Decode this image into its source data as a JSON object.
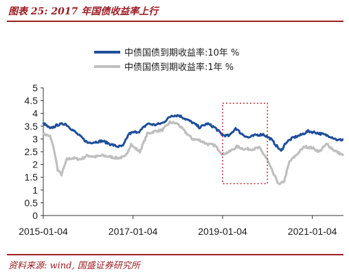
{
  "figure": {
    "title": "图表 25:  2017 年国债收益率上行",
    "source": "资料来源:  wind,  国盛证券研究所"
  },
  "colors": {
    "series_10y": "#1f4e9b",
    "series_1y": "#bfbfbf",
    "highlight_box": "#c0272d",
    "accent": "#9b1c22"
  },
  "chart_data": {
    "type": "line",
    "ylim": [
      0,
      5
    ],
    "yticks": [
      "0",
      "0.5",
      "1",
      "1.5",
      "2",
      "2.5",
      "3",
      "3.5",
      "4",
      "4.5",
      "5"
    ],
    "xlim": [
      "2015-01-04",
      "2021-09-15"
    ],
    "xticks": [
      "2015-01-04",
      "2017-01-04",
      "2019-01-04",
      "2021-01-04"
    ],
    "legend_position": "top-center",
    "highlight_region": {
      "x": [
        "2019-01-04",
        "2020-01-04"
      ],
      "y": [
        1.25,
        4.4
      ]
    },
    "series": [
      {
        "name": "中债国债到期收益率:10年 %",
        "x": [
          "2015-01-04",
          "2015-03-01",
          "2015-05-01",
          "2015-07-01",
          "2015-09-01",
          "2015-11-01",
          "2016-01-01",
          "2016-03-01",
          "2016-05-01",
          "2016-07-01",
          "2016-09-01",
          "2016-10-15",
          "2016-12-01",
          "2017-01-04",
          "2017-03-01",
          "2017-05-01",
          "2017-07-01",
          "2017-09-01",
          "2017-11-15",
          "2018-01-15",
          "2018-03-01",
          "2018-05-01",
          "2018-07-01",
          "2018-09-01",
          "2018-11-01",
          "2019-01-04",
          "2019-03-01",
          "2019-04-20",
          "2019-06-01",
          "2019-08-01",
          "2019-10-01",
          "2019-12-01",
          "2020-02-01",
          "2020-03-15",
          "2020-04-25",
          "2020-06-01",
          "2020-08-01",
          "2020-10-01",
          "2020-12-01",
          "2021-02-01",
          "2021-04-01",
          "2021-06-01",
          "2021-08-01",
          "2021-09-15"
        ],
        "values": [
          3.62,
          3.4,
          3.55,
          3.6,
          3.35,
          3.1,
          2.85,
          2.88,
          2.92,
          2.8,
          2.7,
          2.72,
          3.2,
          3.25,
          3.3,
          3.6,
          3.55,
          3.62,
          3.92,
          3.92,
          3.8,
          3.65,
          3.45,
          3.6,
          3.45,
          3.15,
          3.12,
          3.43,
          3.22,
          3.05,
          3.15,
          3.18,
          3.0,
          2.75,
          2.52,
          2.85,
          3.05,
          3.15,
          3.3,
          3.25,
          3.18,
          3.1,
          2.95,
          2.98
        ]
      },
      {
        "name": "中债国债到期收益率:1年 %",
        "x": [
          "2015-01-04",
          "2015-03-01",
          "2015-04-01",
          "2015-05-01",
          "2015-06-01",
          "2015-07-15",
          "2015-09-01",
          "2015-11-01",
          "2016-01-01",
          "2016-03-01",
          "2016-05-01",
          "2016-07-01",
          "2016-09-01",
          "2016-11-01",
          "2016-12-20",
          "2017-01-04",
          "2017-03-01",
          "2017-05-01",
          "2017-07-01",
          "2017-09-01",
          "2017-11-01",
          "2018-01-01",
          "2018-03-01",
          "2018-05-01",
          "2018-07-01",
          "2018-09-01",
          "2018-11-01",
          "2019-01-04",
          "2019-03-01",
          "2019-05-01",
          "2019-07-01",
          "2019-09-01",
          "2019-11-01",
          "2020-01-01",
          "2020-02-20",
          "2020-04-10",
          "2020-05-20",
          "2020-07-01",
          "2020-09-01",
          "2020-11-01",
          "2021-01-04",
          "2021-03-01",
          "2021-05-01",
          "2021-07-01",
          "2021-09-15"
        ],
        "values": [
          3.2,
          3.1,
          2.6,
          1.8,
          1.6,
          2.2,
          2.25,
          2.2,
          2.35,
          2.3,
          2.35,
          2.3,
          2.25,
          2.3,
          2.8,
          2.7,
          2.5,
          3.2,
          3.3,
          3.35,
          3.65,
          3.6,
          3.3,
          3.0,
          2.95,
          2.8,
          2.75,
          2.4,
          2.5,
          2.7,
          2.6,
          2.6,
          2.65,
          2.2,
          1.65,
          1.2,
          1.35,
          2.1,
          2.4,
          2.7,
          2.65,
          2.5,
          2.8,
          2.55,
          2.35
        ]
      }
    ]
  }
}
